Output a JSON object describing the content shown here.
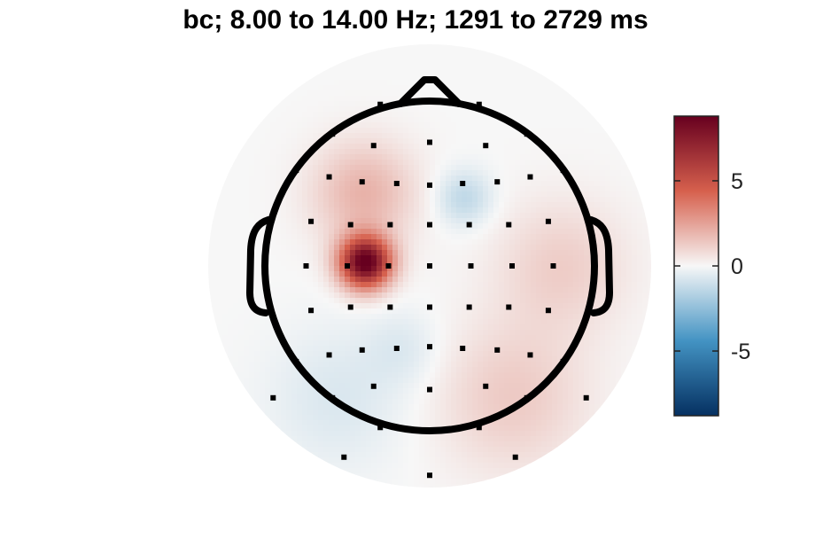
{
  "chart_data": {
    "type": "heatmap",
    "title": "bc; 8.00 to 14.00 Hz; 1291 to 2729 ms",
    "colorbar": {
      "range": [
        -8.8,
        8.8
      ],
      "ticks": [
        5,
        0,
        -5
      ],
      "tick_labels": [
        "5",
        "0",
        "-5"
      ],
      "colors": {
        "low": "#053061",
        "mid_low": "#4393c3",
        "zero": "#f7f7f7",
        "mid_high": "#d6604d",
        "high": "#67001f"
      }
    },
    "head": {
      "outline_color": "#000000",
      "electrode_color": "#000000"
    },
    "sources": [
      {
        "label": "left-central peak",
        "x": -0.39,
        "y": 0.02,
        "value": 9.0,
        "sigma": 0.11
      },
      {
        "label": "left-frontal",
        "x": -0.4,
        "y": 0.44,
        "value": 2.0,
        "sigma": 0.22
      },
      {
        "label": "right-frontal dip",
        "x": 0.21,
        "y": 0.41,
        "value": -1.4,
        "sigma": 0.12
      },
      {
        "label": "right-temporal",
        "x": 0.8,
        "y": 0.0,
        "value": 1.2,
        "sigma": 0.28
      },
      {
        "label": "right-posterior",
        "x": 0.5,
        "y": -0.8,
        "value": 1.3,
        "sigma": 0.32
      },
      {
        "label": "left-posterior dip",
        "x": -0.55,
        "y": -0.8,
        "value": -0.7,
        "sigma": 0.3
      },
      {
        "label": "occipital dip",
        "x": -0.15,
        "y": -0.5,
        "value": -0.6,
        "sigma": 0.16
      }
    ],
    "electrodes": [
      [
        -0.3,
        0.98
      ],
      [
        0.0,
        1.0
      ],
      [
        0.3,
        0.98
      ],
      [
        -0.59,
        0.8
      ],
      [
        0.59,
        0.8
      ],
      [
        -0.34,
        0.73
      ],
      [
        0.0,
        0.75
      ],
      [
        0.34,
        0.73
      ],
      [
        -0.81,
        0.58
      ],
      [
        0.81,
        0.58
      ],
      [
        -0.61,
        0.54
      ],
      [
        -0.41,
        0.51
      ],
      [
        -0.2,
        0.5
      ],
      [
        0.0,
        0.49
      ],
      [
        0.2,
        0.5
      ],
      [
        0.41,
        0.51
      ],
      [
        0.61,
        0.54
      ],
      [
        -0.72,
        0.27
      ],
      [
        -0.48,
        0.25
      ],
      [
        -0.24,
        0.25
      ],
      [
        0.0,
        0.25
      ],
      [
        0.24,
        0.25
      ],
      [
        0.48,
        0.25
      ],
      [
        0.72,
        0.27
      ],
      [
        -0.75,
        0.0
      ],
      [
        -0.5,
        0.0
      ],
      [
        -0.25,
        0.0
      ],
      [
        0.0,
        0.0
      ],
      [
        0.25,
        0.0
      ],
      [
        0.5,
        0.0
      ],
      [
        0.75,
        0.0
      ],
      [
        -0.72,
        -0.27
      ],
      [
        -0.48,
        -0.25
      ],
      [
        -0.24,
        -0.25
      ],
      [
        0.0,
        -0.25
      ],
      [
        0.24,
        -0.25
      ],
      [
        0.48,
        -0.25
      ],
      [
        0.72,
        -0.27
      ],
      [
        -0.81,
        -0.58
      ],
      [
        0.81,
        -0.58
      ],
      [
        -0.61,
        -0.54
      ],
      [
        -0.41,
        -0.51
      ],
      [
        -0.2,
        -0.5
      ],
      [
        0.0,
        -0.49
      ],
      [
        0.2,
        -0.5
      ],
      [
        0.41,
        -0.51
      ],
      [
        0.61,
        -0.54
      ],
      [
        -0.34,
        -0.73
      ],
      [
        0.0,
        -0.75
      ],
      [
        0.34,
        -0.73
      ],
      [
        -0.59,
        -0.8
      ],
      [
        0.59,
        -0.8
      ],
      [
        -0.3,
        -0.98
      ],
      [
        0.0,
        -1.0
      ],
      [
        0.3,
        -0.98
      ],
      [
        -0.95,
        -0.8
      ],
      [
        0.95,
        -0.8
      ],
      [
        -0.52,
        -1.16
      ],
      [
        0.52,
        -1.16
      ],
      [
        0.0,
        -1.27
      ]
    ]
  }
}
